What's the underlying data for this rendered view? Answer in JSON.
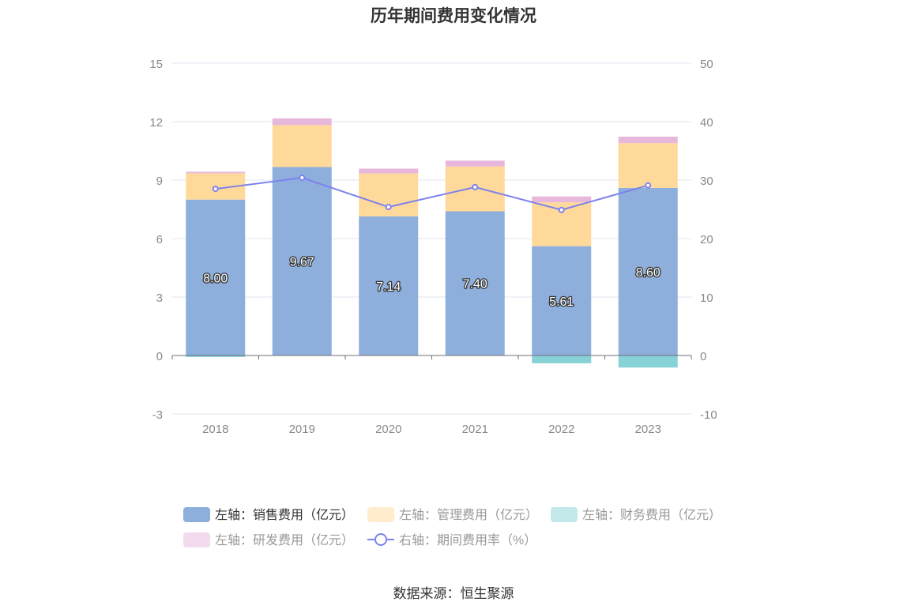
{
  "chart_data": {
    "type": "bar",
    "title": "历年期间费用变化情况",
    "categories": [
      "2018",
      "2019",
      "2020",
      "2021",
      "2022",
      "2023"
    ],
    "y_left": {
      "ylim": [
        -3,
        15
      ],
      "ticks": [
        "-3",
        "0",
        "3",
        "6",
        "9",
        "12",
        "15"
      ],
      "tick_values": [
        -3,
        0,
        3,
        6,
        9,
        12,
        15
      ]
    },
    "y_right": {
      "ylim": [
        -10,
        50
      ],
      "ticks": [
        "-10",
        "0",
        "10",
        "20",
        "30",
        "40",
        "50"
      ],
      "tick_values": [
        -10,
        0,
        10,
        20,
        30,
        40,
        50
      ]
    },
    "series": [
      {
        "name": "左轴：销售费用（亿元）",
        "type": "bar",
        "axis": "left",
        "color": "#8eaedc",
        "values": [
          8.0,
          9.67,
          7.14,
          7.4,
          5.61,
          8.6
        ],
        "labels": [
          "8.00",
          "9.67",
          "7.14",
          "7.40",
          "5.61",
          "8.60"
        ]
      },
      {
        "name": "左轴：管理费用（亿元）",
        "type": "bar",
        "axis": "left",
        "color": "#ffd99a",
        "values": [
          1.35,
          2.15,
          2.2,
          2.3,
          2.25,
          2.3
        ]
      },
      {
        "name": "左轴：财务费用（亿元）",
        "type": "bar",
        "axis": "left",
        "color": "#87d2d6",
        "values": [
          -0.08,
          0.01,
          0.01,
          0.01,
          -0.4,
          -0.62
        ]
      },
      {
        "name": "左轴：研发费用（亿元）",
        "type": "bar",
        "axis": "left",
        "color": "#e8b7dc",
        "values": [
          0.08,
          0.35,
          0.25,
          0.3,
          0.3,
          0.33
        ]
      },
      {
        "name": "右轴：期间费用率（%）",
        "type": "line",
        "axis": "right",
        "color": "#7d82ec",
        "values": [
          28.5,
          30.4,
          25.4,
          28.8,
          24.9,
          29.1
        ]
      }
    ],
    "legend_position": "bottom",
    "grid": true
  },
  "source_text": "数据来源：恒生聚源"
}
